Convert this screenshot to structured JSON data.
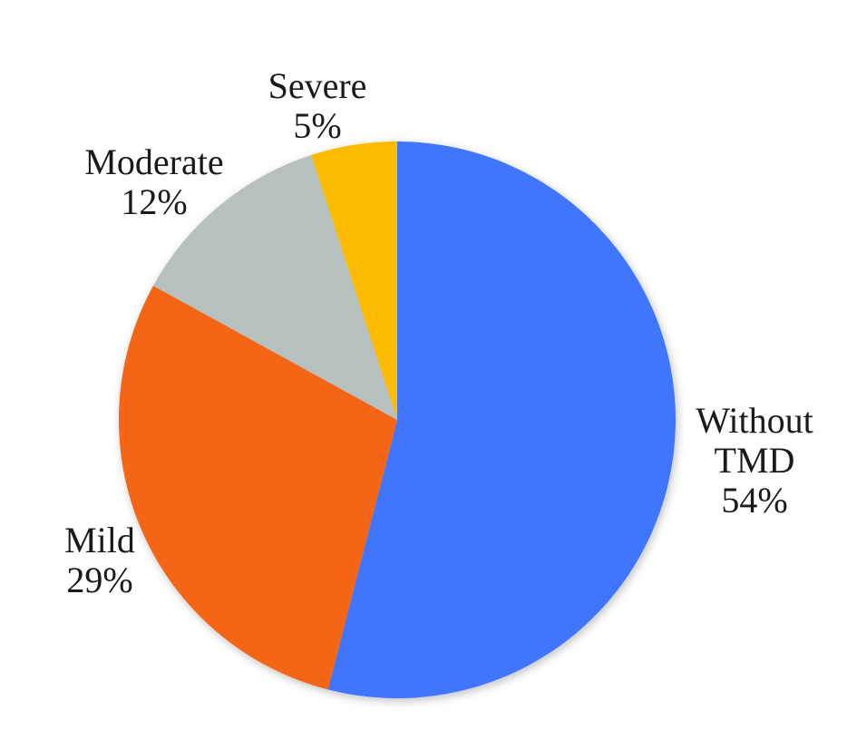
{
  "chart_data": {
    "type": "pie",
    "title": "",
    "start_angle": "12 o'clock",
    "direction": "clockwise",
    "legend": "none (data labels on slices)",
    "categories": [
      "Without TMD",
      "Mild",
      "Moderate",
      "Severe"
    ],
    "values": [
      54,
      29,
      12,
      5
    ],
    "unit": "%",
    "colors": [
      "#3F76FD",
      "#F46617",
      "#B5C0BF",
      "#FDBB06"
    ],
    "labels": [
      {
        "name_lines": [
          "Without",
          "TMD"
        ],
        "value_text": "54%"
      },
      {
        "name_lines": [
          "Mild"
        ],
        "value_text": "29%"
      },
      {
        "name_lines": [
          "Moderate"
        ],
        "value_text": "12%"
      },
      {
        "name_lines": [
          "Severe"
        ],
        "value_text": "5%"
      }
    ]
  }
}
